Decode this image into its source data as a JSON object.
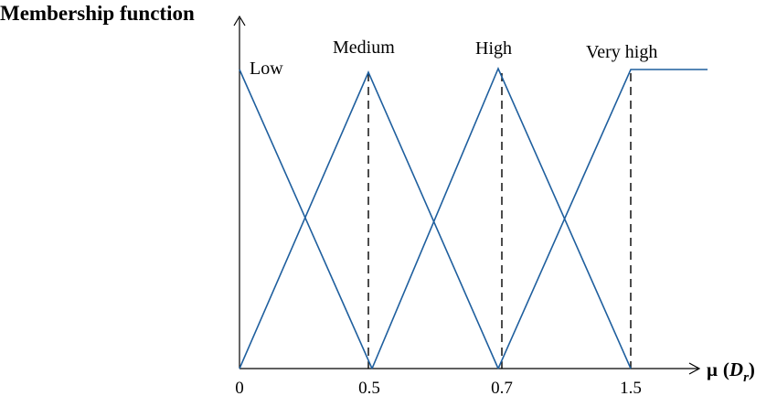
{
  "title": "Membership function",
  "x_axis": {
    "label_symbol": "μ",
    "label_open": "(",
    "label_var": "D",
    "label_sub": "r",
    "label_close": ")"
  },
  "ticks": [
    "0",
    "0.5",
    "0.7",
    "1.5"
  ],
  "sets": [
    {
      "name": "Low",
      "shape": "descending",
      "from": "0",
      "to": "0.5"
    },
    {
      "name": "Medium",
      "shape": "triangle",
      "left": "0",
      "peak": "0.5",
      "right": "0.7"
    },
    {
      "name": "High",
      "shape": "triangle",
      "left": "0.5",
      "peak": "0.7",
      "right": "1.5"
    },
    {
      "name": "Very high",
      "shape": "ramp-then-flat",
      "from": "0.7",
      "to": "1.5"
    }
  ],
  "colors": {
    "membership_line": "#1f5f9e",
    "axes": "#000000",
    "guides": "#000000"
  },
  "guides": {
    "style": "dashed",
    "at": [
      "0.5",
      "0.7",
      "1.5"
    ]
  }
}
